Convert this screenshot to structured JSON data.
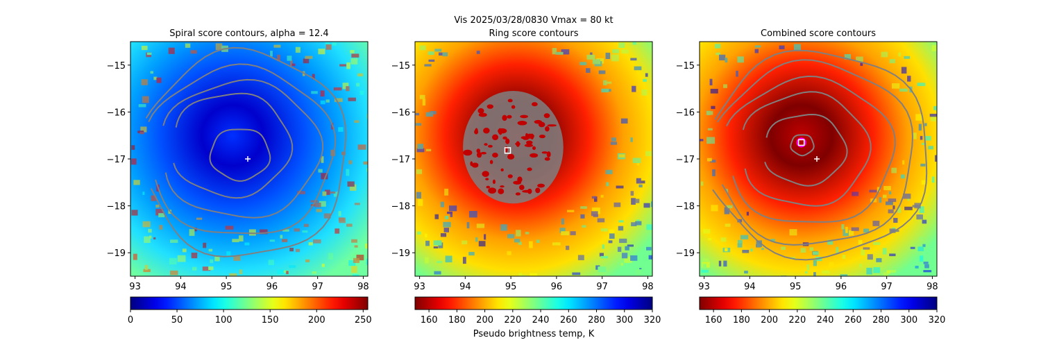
{
  "suptitle": "Vis  2025/03/28/0830    Vmax = 80 kt",
  "chart_data": [
    {
      "type": "heatmap",
      "title": "Spiral score contours, alpha = 12.4",
      "colormap": "jet",
      "colormap_reversed": false,
      "xlim": [
        92.9,
        98.1
      ],
      "ylim": [
        -19.5,
        -14.5
      ],
      "xticks": [
        93,
        94,
        95,
        96,
        97,
        98
      ],
      "yticks": [
        -15,
        -16,
        -17,
        -18,
        -19
      ],
      "colorbar": {
        "range": [
          0,
          255
        ],
        "ticks": [
          0,
          50,
          100,
          150,
          200,
          250
        ],
        "label": ""
      },
      "center_marker": {
        "symbol": "+",
        "x": 95.47,
        "y": -17.0,
        "color": "#ffffff"
      },
      "contour_color": "#808080",
      "contour_rings": [
        {
          "cx": 95.3,
          "cy": -16.9,
          "rx": 0.65,
          "ry": 0.55
        },
        {
          "cx": 95.1,
          "cy": -16.7,
          "rx": 1.3,
          "ry": 1.1
        },
        {
          "cx": 95.3,
          "cy": -16.8,
          "rx": 1.75,
          "ry": 1.45
        },
        {
          "cx": 95.3,
          "cy": -16.85,
          "rx": 2.05,
          "ry": 1.8
        },
        {
          "cx": 95.4,
          "cy": -16.9,
          "rx": 2.25,
          "ry": 2.2
        }
      ]
    },
    {
      "type": "heatmap",
      "title": "Ring score contours",
      "colormap": "jet",
      "colormap_reversed": true,
      "xlim": [
        92.9,
        98.1
      ],
      "ylim": [
        -19.5,
        -14.5
      ],
      "xticks": [
        93,
        94,
        95,
        96,
        97,
        98
      ],
      "yticks": [
        -15,
        -16,
        -17,
        -18,
        -19
      ],
      "colorbar": {
        "range": [
          150,
          320
        ],
        "ticks": [
          160,
          180,
          200,
          220,
          240,
          260,
          280,
          300,
          320
        ],
        "label": "Pseudo brightness temp, K"
      },
      "center_marker": {
        "symbol": "square",
        "x": 94.93,
        "y": -16.82,
        "color": "#ffffff"
      },
      "contour_color": "#808080",
      "ring_region": {
        "cx": 95.05,
        "cy": -16.75,
        "rx": 1.1,
        "ry": 1.2
      }
    },
    {
      "type": "heatmap",
      "title": "Combined score contours",
      "colormap": "jet",
      "colormap_reversed": true,
      "xlim": [
        92.9,
        98.1
      ],
      "ylim": [
        -19.5,
        -14.5
      ],
      "xticks": [
        93,
        94,
        95,
        96,
        97,
        98
      ],
      "yticks": [
        -15,
        -16,
        -17,
        -18,
        -19
      ],
      "colorbar": {
        "range": [
          150,
          320
        ],
        "ticks": [
          160,
          180,
          200,
          220,
          240,
          260,
          280,
          300,
          320
        ],
        "label": ""
      },
      "center_marker": {
        "symbol": "+",
        "x": 95.47,
        "y": -17.0,
        "color": "#ffffff"
      },
      "best_marker": {
        "symbol": "square",
        "x": 95.13,
        "y": -16.65,
        "color": "#ffffff",
        "ring_color": "#ff00ff"
      },
      "contour_color": "#808080",
      "contour_rings": [
        {
          "cx": 95.15,
          "cy": -16.7,
          "rx": 0.25,
          "ry": 0.22
        },
        {
          "cx": 95.2,
          "cy": -16.8,
          "rx": 0.9,
          "ry": 0.75
        },
        {
          "cx": 95.2,
          "cy": -16.8,
          "rx": 1.4,
          "ry": 1.2
        },
        {
          "cx": 95.3,
          "cy": -16.85,
          "rx": 1.85,
          "ry": 1.55
        },
        {
          "cx": 95.4,
          "cy": -16.9,
          "rx": 2.2,
          "ry": 1.95
        },
        {
          "cx": 95.5,
          "cy": -16.9,
          "rx": 2.45,
          "ry": 2.2
        }
      ]
    }
  ]
}
